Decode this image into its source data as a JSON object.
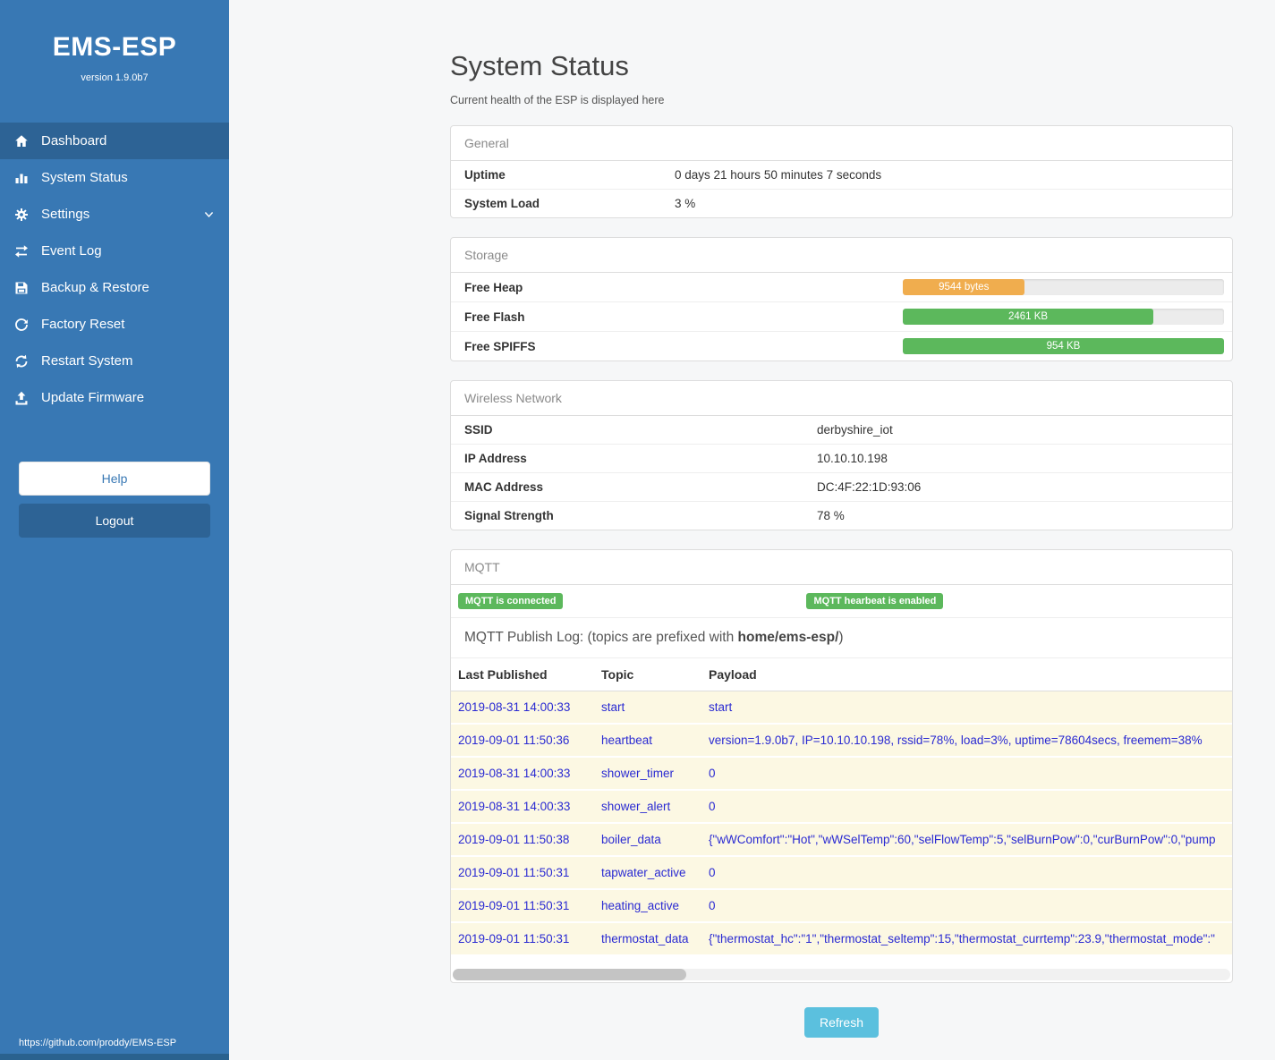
{
  "sidebar": {
    "title": "EMS-ESP",
    "version": "version 1.9.0b7",
    "items": [
      {
        "label": "Dashboard",
        "icon": "home-icon",
        "active": true
      },
      {
        "label": "System Status",
        "icon": "bar-chart-icon",
        "active": false
      },
      {
        "label": "Settings",
        "icon": "gear-icon",
        "active": false,
        "chevron": "chevron-down-icon"
      },
      {
        "label": "Event Log",
        "icon": "arrows-exchange-icon",
        "active": false
      },
      {
        "label": "Backup & Restore",
        "icon": "floppy-icon",
        "active": false
      },
      {
        "label": "Factory Reset",
        "icon": "rotate-icon",
        "active": false
      },
      {
        "label": "Restart System",
        "icon": "refresh-icon",
        "active": false
      },
      {
        "label": "Update Firmware",
        "icon": "upload-icon",
        "active": false
      }
    ],
    "help_label": "Help",
    "logout_label": "Logout",
    "footer": "https://github.com/proddy/EMS-ESP"
  },
  "main": {
    "title": "System Status",
    "subtitle": "Current health of the ESP is displayed here",
    "general": {
      "header": "General",
      "rows": [
        {
          "label": "Uptime",
          "value": "0 days 21 hours 50 minutes 7 seconds"
        },
        {
          "label": "System Load",
          "value": "3 %"
        }
      ]
    },
    "storage": {
      "header": "Storage",
      "rows": [
        {
          "label": "Free Heap",
          "bar_label": "9544 bytes",
          "percent": 38,
          "color": "#f0ad4e"
        },
        {
          "label": "Free Flash",
          "bar_label": "2461 KB",
          "percent": 78,
          "color": "#5cb85c"
        },
        {
          "label": "Free SPIFFS",
          "bar_label": "954 KB",
          "percent": 100,
          "color": "#5cb85c"
        }
      ]
    },
    "wireless": {
      "header": "Wireless Network",
      "rows": [
        {
          "label": "SSID",
          "value": "derbyshire_iot"
        },
        {
          "label": "IP Address",
          "value": "10.10.10.198"
        },
        {
          "label": "MAC Address",
          "value": "DC:4F:22:1D:93:06"
        },
        {
          "label": "Signal Strength",
          "value": "78 %"
        }
      ]
    },
    "mqtt": {
      "header": "MQTT",
      "badges": [
        "MQTT is connected",
        "MQTT hearbeat is enabled"
      ],
      "log_prefix": "MQTT Publish Log: (topics are prefixed with ",
      "log_bold": "home/ems-esp/",
      "log_suffix": ")",
      "table": {
        "headers": [
          "Last Published",
          "Topic",
          "Payload"
        ],
        "rows": [
          {
            "time": "2019-08-31 14:00:33",
            "topic": "start",
            "payload": "start"
          },
          {
            "time": "2019-09-01 11:50:36",
            "topic": "heartbeat",
            "payload": "version=1.9.0b7, IP=10.10.10.198, rssid=78%, load=3%, uptime=78604secs, freemem=38%"
          },
          {
            "time": "2019-08-31 14:00:33",
            "topic": "shower_timer",
            "payload": "0"
          },
          {
            "time": "2019-08-31 14:00:33",
            "topic": "shower_alert",
            "payload": "0"
          },
          {
            "time": "2019-09-01 11:50:38",
            "topic": "boiler_data",
            "payload": "{\"wWComfort\":\"Hot\",\"wWSelTemp\":60,\"selFlowTemp\":5,\"selBurnPow\":0,\"curBurnPow\":0,\"pump"
          },
          {
            "time": "2019-09-01 11:50:31",
            "topic": "tapwater_active",
            "payload": "0"
          },
          {
            "time": "2019-09-01 11:50:31",
            "topic": "heating_active",
            "payload": "0"
          },
          {
            "time": "2019-09-01 11:50:31",
            "topic": "thermostat_data",
            "payload": "{\"thermostat_hc\":\"1\",\"thermostat_seltemp\":15,\"thermostat_currtemp\":23.9,\"thermostat_mode\":\""
          }
        ]
      }
    },
    "refresh_label": "Refresh"
  }
}
